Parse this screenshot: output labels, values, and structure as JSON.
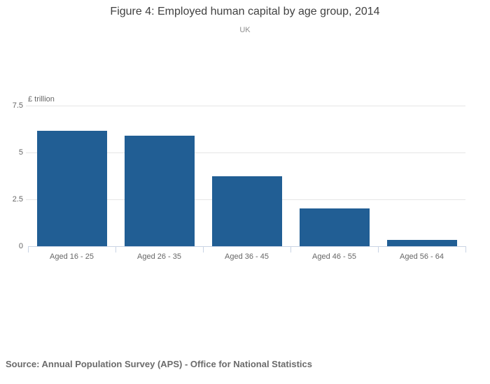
{
  "chart_data": {
    "type": "bar",
    "title": "Figure 4: Employed human capital by age group, 2014",
    "subtitle": "UK",
    "ylabel": "£ trillion",
    "xlabel": "",
    "categories": [
      "Aged 16 - 25",
      "Aged 26 - 35",
      "Aged 36 - 45",
      "Aged 46 - 55",
      "Aged 56 - 64"
    ],
    "values": [
      6.15,
      5.9,
      3.73,
      2.01,
      0.34
    ],
    "ylim": [
      0,
      7.5
    ],
    "yticks": [
      {
        "value": 0,
        "label": "0"
      },
      {
        "value": 2.5,
        "label": "2.5"
      },
      {
        "value": 5,
        "label": "5"
      },
      {
        "value": 7.5,
        "label": "7.5"
      }
    ],
    "grid": true,
    "legend": "none",
    "bar_color": "#215e94"
  },
  "colors": {
    "bar": "#215e94",
    "gridline": "#e6e6e6",
    "axis_line": "#c9d4e4",
    "title": "#414141",
    "subtitle": "#8e8e8e",
    "tick_label": "#666666",
    "source": "#6b6b6b"
  },
  "source_note": "Source: Annual Population Survey (APS) - Office for National Statistics"
}
